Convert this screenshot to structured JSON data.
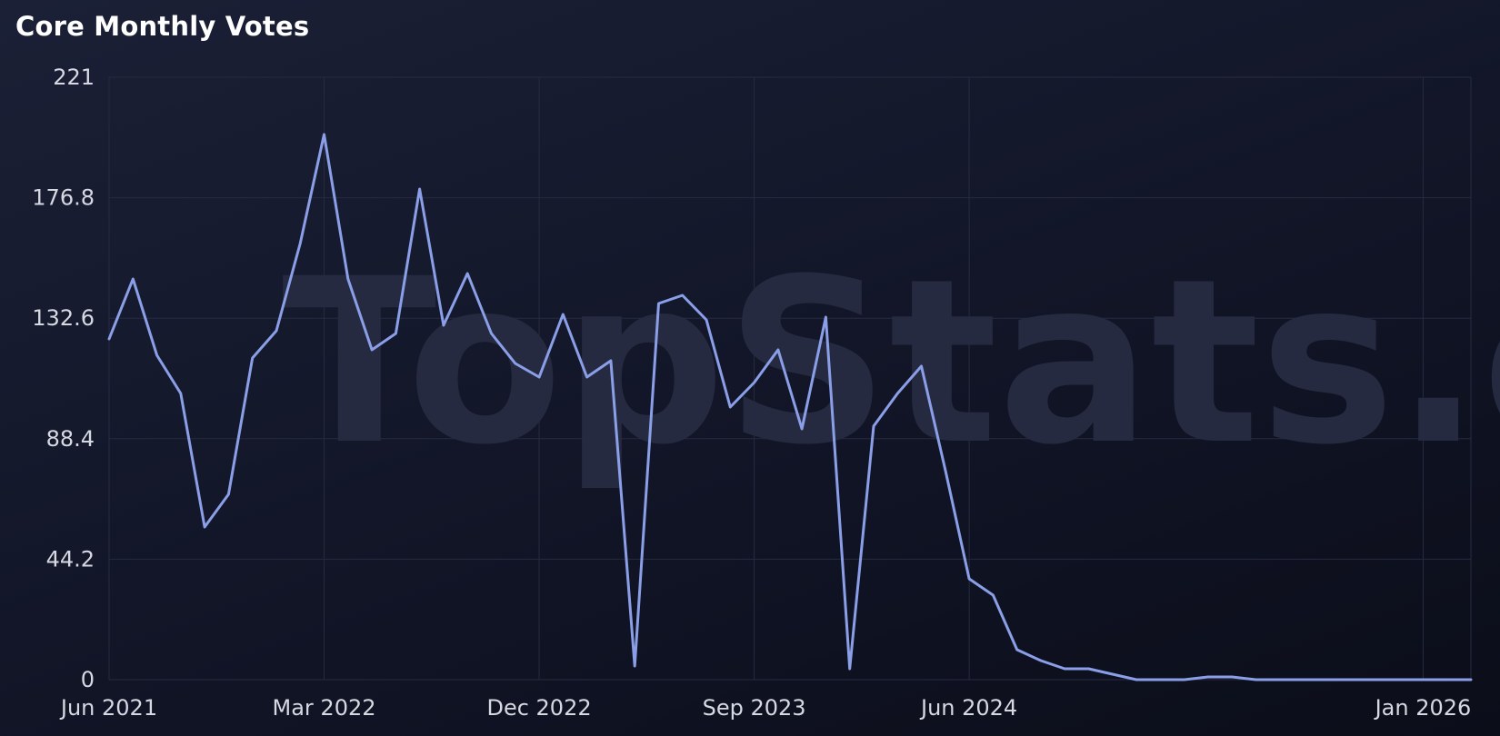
{
  "watermark": "TopStats.gg",
  "chart_data": {
    "type": "line",
    "title": "Core Monthly Votes",
    "xlabel": "",
    "ylabel": "",
    "ylim": [
      0,
      221
    ],
    "yticks": [
      "0",
      "44.2",
      "88.4",
      "132.6",
      "176.8",
      "221"
    ],
    "xticks": [
      {
        "label": "Jun 2021",
        "date": "2021-06"
      },
      {
        "label": "Mar 2022",
        "date": "2022-03"
      },
      {
        "label": "Dec 2022",
        "date": "2022-12"
      },
      {
        "label": "Sep 2023",
        "date": "2023-09"
      },
      {
        "label": "Jun 2024",
        "date": "2024-06"
      },
      {
        "label": "Jan 2026",
        "date": "2026-01"
      }
    ],
    "grid": true,
    "line_color": "#8b9fe8",
    "series": [
      {
        "x": [
          "2021-06",
          "2021-07",
          "2021-08",
          "2021-09",
          "2021-10",
          "2021-11",
          "2021-12",
          "2022-01",
          "2022-02",
          "2022-03",
          "2022-04",
          "2022-05",
          "2022-06",
          "2022-07",
          "2022-08",
          "2022-09",
          "2022-10",
          "2022-11",
          "2022-12",
          "2023-01",
          "2023-02",
          "2023-03",
          "2023-04",
          "2023-05",
          "2023-06",
          "2023-07",
          "2023-08",
          "2023-09",
          "2023-10",
          "2023-11",
          "2023-12",
          "2024-01",
          "2024-02",
          "2024-03",
          "2024-04",
          "2024-05",
          "2024-06",
          "2024-07",
          "2024-08",
          "2024-09",
          "2024-10",
          "2024-11",
          "2024-12",
          "2025-01",
          "2025-02",
          "2025-03",
          "2025-04",
          "2025-05",
          "2025-06",
          "2025-07",
          "2025-08",
          "2025-09",
          "2025-10",
          "2025-11",
          "2025-12",
          "2026-01",
          "2026-02",
          "2026-03"
        ],
        "values": [
          125,
          147,
          119,
          105,
          56,
          68,
          118,
          128,
          160,
          200,
          147,
          121,
          127,
          180,
          130,
          149,
          127,
          116,
          111,
          134,
          111,
          117,
          5,
          138,
          141,
          132,
          100,
          109,
          121,
          92,
          133,
          4,
          93,
          105,
          115,
          77,
          37,
          31,
          11,
          7,
          4,
          4,
          2,
          0,
          0,
          0,
          1,
          1,
          0,
          0,
          0,
          0,
          0,
          0,
          0,
          0,
          0,
          0
        ]
      }
    ]
  }
}
